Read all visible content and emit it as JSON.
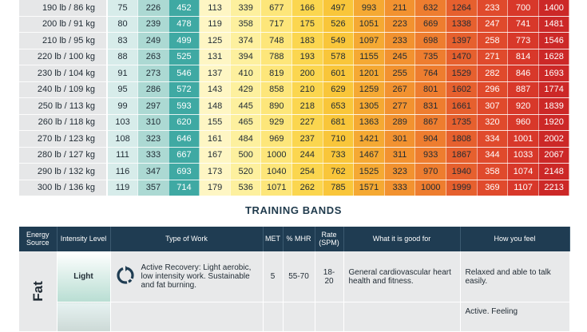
{
  "weight_rows": [
    {
      "label": "190 lb / 86 kg",
      "values": [
        "75",
        "226",
        "452",
        "113",
        "339",
        "677",
        "166",
        "497",
        "993",
        "211",
        "632",
        "1264",
        "233",
        "700",
        "1400"
      ]
    },
    {
      "label": "200 lb / 91 kg",
      "values": [
        "80",
        "239",
        "478",
        "119",
        "358",
        "717",
        "175",
        "526",
        "1051",
        "223",
        "669",
        "1338",
        "247",
        "741",
        "1481"
      ]
    },
    {
      "label": "210 lb / 95 kg",
      "values": [
        "83",
        "249",
        "499",
        "125",
        "374",
        "748",
        "183",
        "549",
        "1097",
        "233",
        "698",
        "1397",
        "258",
        "773",
        "1546"
      ]
    },
    {
      "label": "220 lb / 100 kg",
      "values": [
        "88",
        "263",
        "525",
        "131",
        "394",
        "788",
        "193",
        "578",
        "1155",
        "245",
        "735",
        "1470",
        "271",
        "814",
        "1628"
      ]
    },
    {
      "label": "230 lb / 104 kg",
      "values": [
        "91",
        "273",
        "546",
        "137",
        "410",
        "819",
        "200",
        "601",
        "1201",
        "255",
        "764",
        "1529",
        "282",
        "846",
        "1693"
      ]
    },
    {
      "label": "240 lb / 109 kg",
      "values": [
        "95",
        "286",
        "572",
        "143",
        "429",
        "858",
        "210",
        "629",
        "1259",
        "267",
        "801",
        "1602",
        "296",
        "887",
        "1774"
      ]
    },
    {
      "label": "250 lb / 113 kg",
      "values": [
        "99",
        "297",
        "593",
        "148",
        "445",
        "890",
        "218",
        "653",
        "1305",
        "277",
        "831",
        "1661",
        "307",
        "920",
        "1839"
      ]
    },
    {
      "label": "260 lb / 118 kg",
      "values": [
        "103",
        "310",
        "620",
        "155",
        "465",
        "929",
        "227",
        "681",
        "1363",
        "289",
        "867",
        "1735",
        "320",
        "960",
        "1920"
      ]
    },
    {
      "label": "270 lb / 123 kg",
      "values": [
        "108",
        "323",
        "646",
        "161",
        "484",
        "969",
        "237",
        "710",
        "1421",
        "301",
        "904",
        "1808",
        "334",
        "1001",
        "2002"
      ]
    },
    {
      "label": "280 lb / 127 kg",
      "values": [
        "111",
        "333",
        "667",
        "167",
        "500",
        "1000",
        "244",
        "733",
        "1467",
        "311",
        "933",
        "1867",
        "344",
        "1033",
        "2067"
      ]
    },
    {
      "label": "290 lb / 132 kg",
      "values": [
        "116",
        "347",
        "693",
        "173",
        "520",
        "1040",
        "254",
        "762",
        "1525",
        "323",
        "970",
        "1940",
        "358",
        "1074",
        "2148"
      ]
    },
    {
      "label": "300 lb / 136 kg",
      "values": [
        "119",
        "357",
        "714",
        "179",
        "536",
        "1071",
        "262",
        "785",
        "1571",
        "333",
        "1000",
        "1999",
        "369",
        "1107",
        "2213"
      ]
    }
  ],
  "column_colors": [
    "#d7ecea",
    "#acd9d3",
    "#3fa9a3",
    "#fef6c4",
    "#fdf09e",
    "#fde67a",
    "#fbd64f",
    "#f9c63a",
    "#f5a933",
    "#f29230",
    "#ee7d2f",
    "#e6602e",
    "#e04a2c",
    "#d8382a",
    "#cc2827"
  ],
  "section_title": "TRAINING BANDS",
  "bands_headers": [
    "Energy Source",
    "Intensity Level",
    "Type of Work",
    "MET",
    "% MHR",
    "Rate (SPM)",
    "What it is good for",
    "How you feel"
  ],
  "bands": [
    {
      "energy": "Fat",
      "level": "Light",
      "icon": "circular-arrows-icon",
      "work": "Active Recovery: Light aerobic, low intensity work. Sustainable and fat burning.",
      "met": "5",
      "mhr": "55-70",
      "rate": "18-20",
      "good_for": "General cardiovascular heart health and fitness.",
      "feel": "Relaxed and able to talk easily."
    },
    {
      "feel": "Active. Feeling"
    }
  ]
}
